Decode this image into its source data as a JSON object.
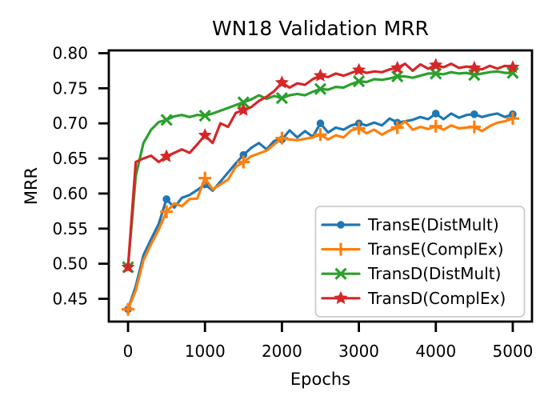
{
  "figure": {
    "background": "#ffffff",
    "frame_color": "#000000"
  },
  "chart_data": {
    "type": "line",
    "title": "WN18 Validation MRR",
    "xlabel": "Epochs",
    "ylabel": "MRR",
    "xlim": [
      -250,
      5250
    ],
    "ylim": [
      0.4175,
      0.804
    ],
    "xticks": [
      0,
      1000,
      2000,
      3000,
      4000,
      5000
    ],
    "xticklabels": [
      "0",
      "1000",
      "2000",
      "3000",
      "4000",
      "5000"
    ],
    "yticks": [
      0.45,
      0.5,
      0.55,
      0.6,
      0.65,
      0.7,
      0.75,
      0.8
    ],
    "yticklabels": [
      "0.45",
      "0.50",
      "0.55",
      "0.60",
      "0.65",
      "0.70",
      "0.75",
      "0.80"
    ],
    "grid": false,
    "legend_position": "lower-right-inside",
    "marker_every": 5,
    "x_values": [
      0,
      100,
      200,
      300,
      400,
      500,
      600,
      700,
      800,
      900,
      1000,
      1100,
      1200,
      1300,
      1400,
      1500,
      1600,
      1700,
      1800,
      1900,
      2000,
      2100,
      2200,
      2300,
      2400,
      2500,
      2600,
      2700,
      2800,
      2900,
      3000,
      3100,
      3200,
      3300,
      3400,
      3500,
      3600,
      3700,
      3800,
      3900,
      4000,
      4100,
      4200,
      4300,
      4400,
      4500,
      4600,
      4700,
      4800,
      4900,
      5000
    ],
    "series": [
      {
        "name": "TransE(DistMult)",
        "color": "#1f77b4",
        "marker": "circle",
        "values": [
          0.435,
          0.468,
          0.512,
          0.535,
          0.557,
          0.592,
          0.58,
          0.594,
          0.598,
          0.605,
          0.613,
          0.604,
          0.617,
          0.63,
          0.643,
          0.655,
          0.665,
          0.672,
          0.663,
          0.675,
          0.677,
          0.69,
          0.68,
          0.689,
          0.681,
          0.7,
          0.687,
          0.694,
          0.691,
          0.697,
          0.7,
          0.697,
          0.701,
          0.697,
          0.707,
          0.701,
          0.703,
          0.705,
          0.709,
          0.706,
          0.714,
          0.706,
          0.714,
          0.708,
          0.712,
          0.713,
          0.709,
          0.712,
          0.714,
          0.709,
          0.713
        ]
      },
      {
        "name": "TransE(ComplEx)",
        "color": "#ff7f0e",
        "marker": "plus",
        "values": [
          0.435,
          0.462,
          0.505,
          0.528,
          0.549,
          0.574,
          0.586,
          0.582,
          0.592,
          0.593,
          0.622,
          0.606,
          0.613,
          0.62,
          0.638,
          0.645,
          0.653,
          0.657,
          0.661,
          0.67,
          0.679,
          0.677,
          0.676,
          0.678,
          0.68,
          0.684,
          0.677,
          0.683,
          0.68,
          0.69,
          0.693,
          0.686,
          0.691,
          0.684,
          0.69,
          0.694,
          0.703,
          0.691,
          0.695,
          0.692,
          0.696,
          0.691,
          0.697,
          0.693,
          0.694,
          0.695,
          0.689,
          0.696,
          0.701,
          0.703,
          0.707
        ]
      },
      {
        "name": "TransD(DistMult)",
        "color": "#2ca02c",
        "marker": "x",
        "values": [
          0.495,
          0.625,
          0.672,
          0.691,
          0.702,
          0.705,
          0.71,
          0.712,
          0.709,
          0.712,
          0.711,
          0.714,
          0.718,
          0.722,
          0.726,
          0.73,
          0.734,
          0.74,
          0.735,
          0.739,
          0.736,
          0.74,
          0.742,
          0.74,
          0.745,
          0.749,
          0.748,
          0.752,
          0.751,
          0.756,
          0.76,
          0.759,
          0.763,
          0.762,
          0.764,
          0.767,
          0.767,
          0.765,
          0.768,
          0.771,
          0.771,
          0.77,
          0.773,
          0.771,
          0.772,
          0.769,
          0.771,
          0.773,
          0.774,
          0.772,
          0.772
        ]
      },
      {
        "name": "TransD(ComplEx)",
        "color": "#d62728",
        "marker": "star",
        "values": [
          0.495,
          0.645,
          0.65,
          0.654,
          0.645,
          0.653,
          0.658,
          0.663,
          0.658,
          0.67,
          0.683,
          0.672,
          0.7,
          0.695,
          0.715,
          0.719,
          0.723,
          0.732,
          0.738,
          0.746,
          0.758,
          0.751,
          0.757,
          0.755,
          0.763,
          0.768,
          0.766,
          0.771,
          0.768,
          0.772,
          0.776,
          0.772,
          0.774,
          0.773,
          0.777,
          0.779,
          0.785,
          0.775,
          0.784,
          0.778,
          0.783,
          0.78,
          0.785,
          0.779,
          0.781,
          0.779,
          0.777,
          0.782,
          0.778,
          0.782,
          0.78
        ]
      }
    ],
    "legend": {
      "border_color": "#cccccc",
      "background": "#ffffff"
    }
  }
}
